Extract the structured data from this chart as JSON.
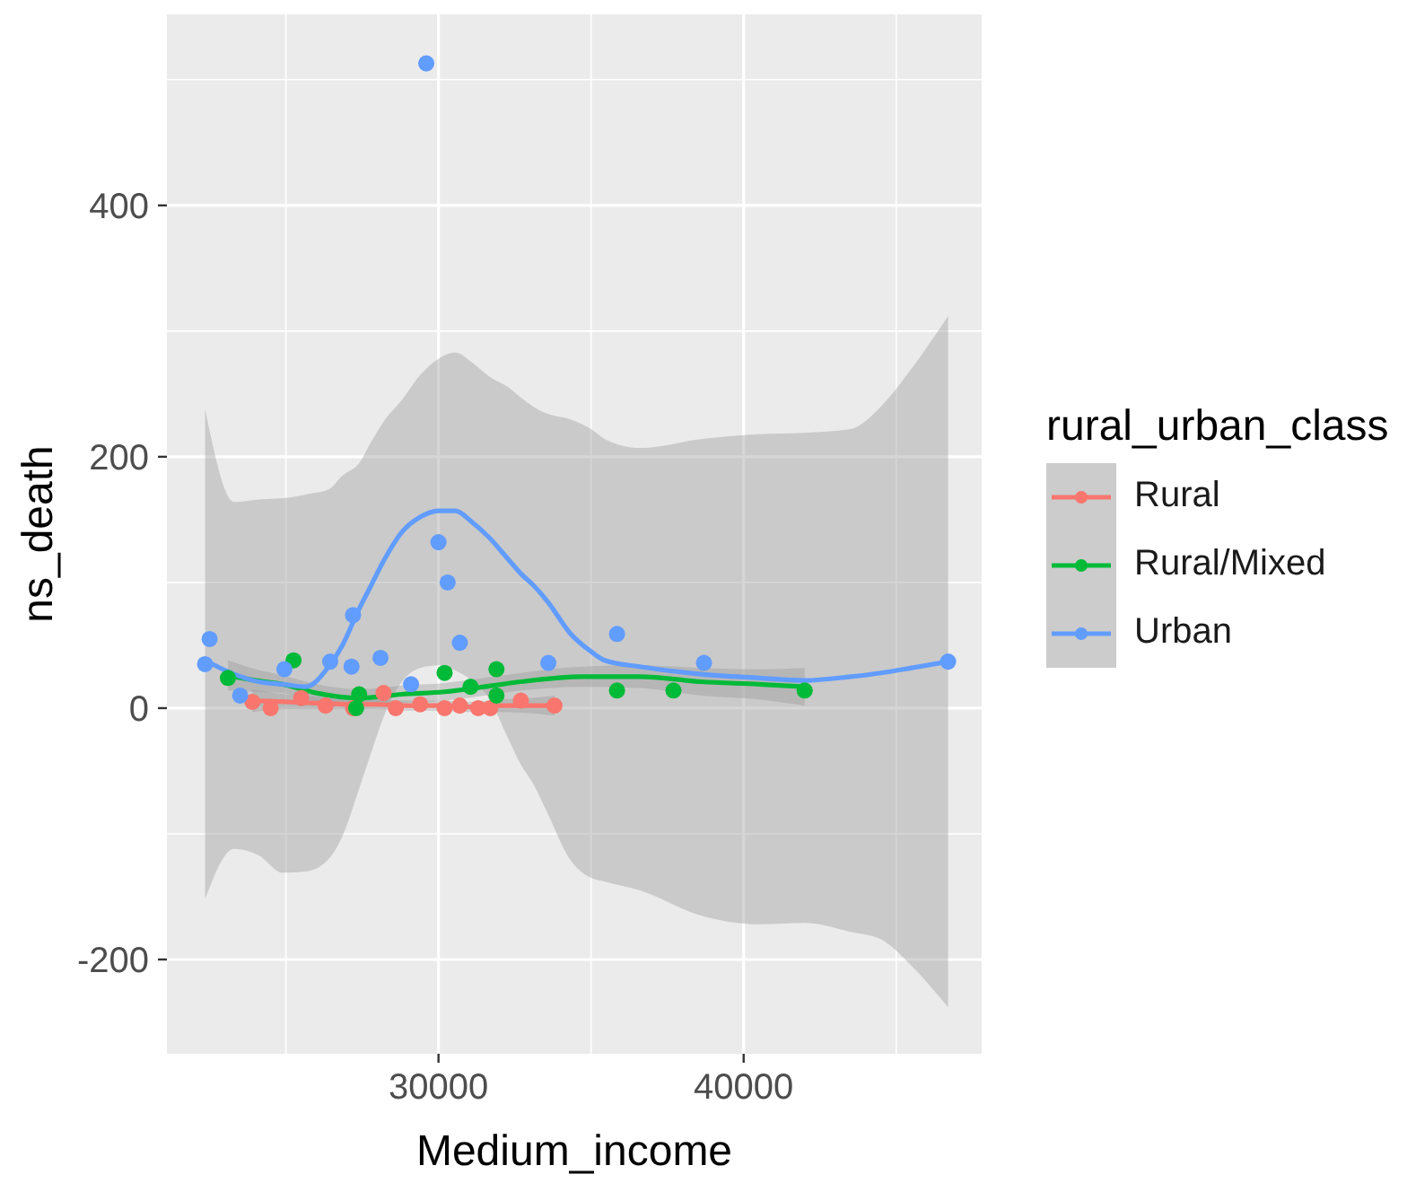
{
  "chart_data": {
    "type": "scatter",
    "xlabel": "Medium_income",
    "ylabel": "ns_death",
    "legend_title": "rural_urban_class",
    "legend": "right",
    "grid": true,
    "marker": "circle",
    "xlim": [
      21100,
      47800
    ],
    "xticks": [
      30000,
      40000
    ],
    "ylim": [
      -275,
      552
    ],
    "yticks": [
      -200,
      0,
      200,
      400
    ],
    "series": [
      {
        "name": "Rural",
        "color": "#f8766d",
        "x": [
          23900,
          24500,
          25500,
          26300,
          27200,
          28200,
          28600,
          29400,
          30200,
          30700,
          31300,
          31700,
          32700,
          33800
        ],
        "values": [
          5,
          0,
          8,
          2,
          0,
          12,
          0,
          3,
          0,
          2,
          0,
          0,
          6,
          2
        ]
      },
      {
        "name": "Rural/Mixed",
        "color": "#00ba38",
        "x": [
          23100,
          25250,
          27300,
          27400,
          30200,
          31050,
          31900,
          31900,
          35850,
          37700,
          42000
        ],
        "values": [
          24,
          38,
          0,
          11,
          28,
          17,
          31,
          10,
          14,
          14,
          14
        ]
      },
      {
        "name": "Urban",
        "color": "#619cff",
        "x": [
          22350,
          22500,
          23500,
          24950,
          26450,
          27150,
          27200,
          28100,
          29100,
          29600,
          30000,
          30300,
          30700,
          33600,
          35850,
          38700,
          46700
        ],
        "values": [
          35,
          55,
          10,
          31,
          37,
          33,
          74,
          40,
          19,
          513,
          132,
          100,
          52,
          36,
          59,
          36,
          37
        ]
      },
      {
        "type": "line",
        "marker": "none",
        "color": "#f8766d",
        "x": [
          23900,
          25000,
          26000,
          27000,
          28000,
          29000,
          30000,
          31000,
          32000,
          33000,
          33800
        ],
        "values": [
          6,
          5,
          4,
          3,
          3,
          2,
          2,
          1,
          2,
          2,
          2
        ],
        "lower": [
          -3,
          -1,
          -1,
          -1,
          -1,
          -2,
          -2,
          -3,
          -3,
          -4,
          -6
        ],
        "upper": [
          15,
          11,
          9,
          7,
          7,
          6,
          6,
          5,
          7,
          8,
          10
        ]
      },
      {
        "type": "line",
        "marker": "none",
        "color": "#00ba38",
        "x": [
          23100,
          24000,
          24900,
          26000,
          27400,
          28800,
          30200,
          31500,
          32700,
          34700,
          36600,
          38600,
          40500,
          42000
        ],
        "values": [
          26,
          22,
          19,
          12,
          8,
          11,
          13,
          17,
          21,
          25,
          25,
          21,
          19,
          17
        ],
        "lower": [
          14,
          13,
          12,
          5,
          1,
          4,
          6,
          10,
          14,
          17,
          16,
          10,
          7,
          2
        ],
        "upper": [
          38,
          31,
          26,
          19,
          15,
          18,
          20,
          24,
          28,
          33,
          34,
          32,
          31,
          32
        ]
      },
      {
        "type": "line",
        "marker": "none",
        "color": "#619cff",
        "x": [
          22350,
          23300,
          24100,
          24900,
          25650,
          26400,
          26850,
          27400,
          27800,
          28200,
          28800,
          29400,
          30000,
          30550,
          31100,
          31650,
          32300,
          32700,
          33100,
          33600,
          34300,
          35000,
          35450,
          36600,
          38600,
          40500,
          42000,
          43500,
          44500,
          45500,
          46700
        ],
        "values": [
          38,
          27,
          21,
          19,
          17,
          33,
          50,
          79,
          98,
          117,
          140,
          152,
          157,
          157,
          148,
          136,
          118,
          107,
          98,
          84,
          60,
          45,
          38,
          33,
          27,
          24,
          22,
          25,
          28,
          32,
          37
        ],
        "lower": [
          -152,
          -112,
          -117,
          -131,
          -130,
          -120,
          -102,
          -64,
          -35,
          -7,
          21,
          32,
          34,
          30,
          22,
          8,
          -25,
          -45,
          -60,
          -85,
          -120,
          -135,
          -138,
          -145,
          -165,
          -172,
          -171,
          -178,
          -184,
          -205,
          -238
        ],
        "upper": [
          238,
          164,
          166,
          167,
          170,
          174,
          185,
          195,
          212,
          228,
          245,
          265,
          278,
          283,
          275,
          264,
          255,
          247,
          240,
          234,
          230,
          222,
          214,
          207,
          214,
          218,
          219,
          222,
          240,
          270,
          312
        ]
      }
    ]
  }
}
